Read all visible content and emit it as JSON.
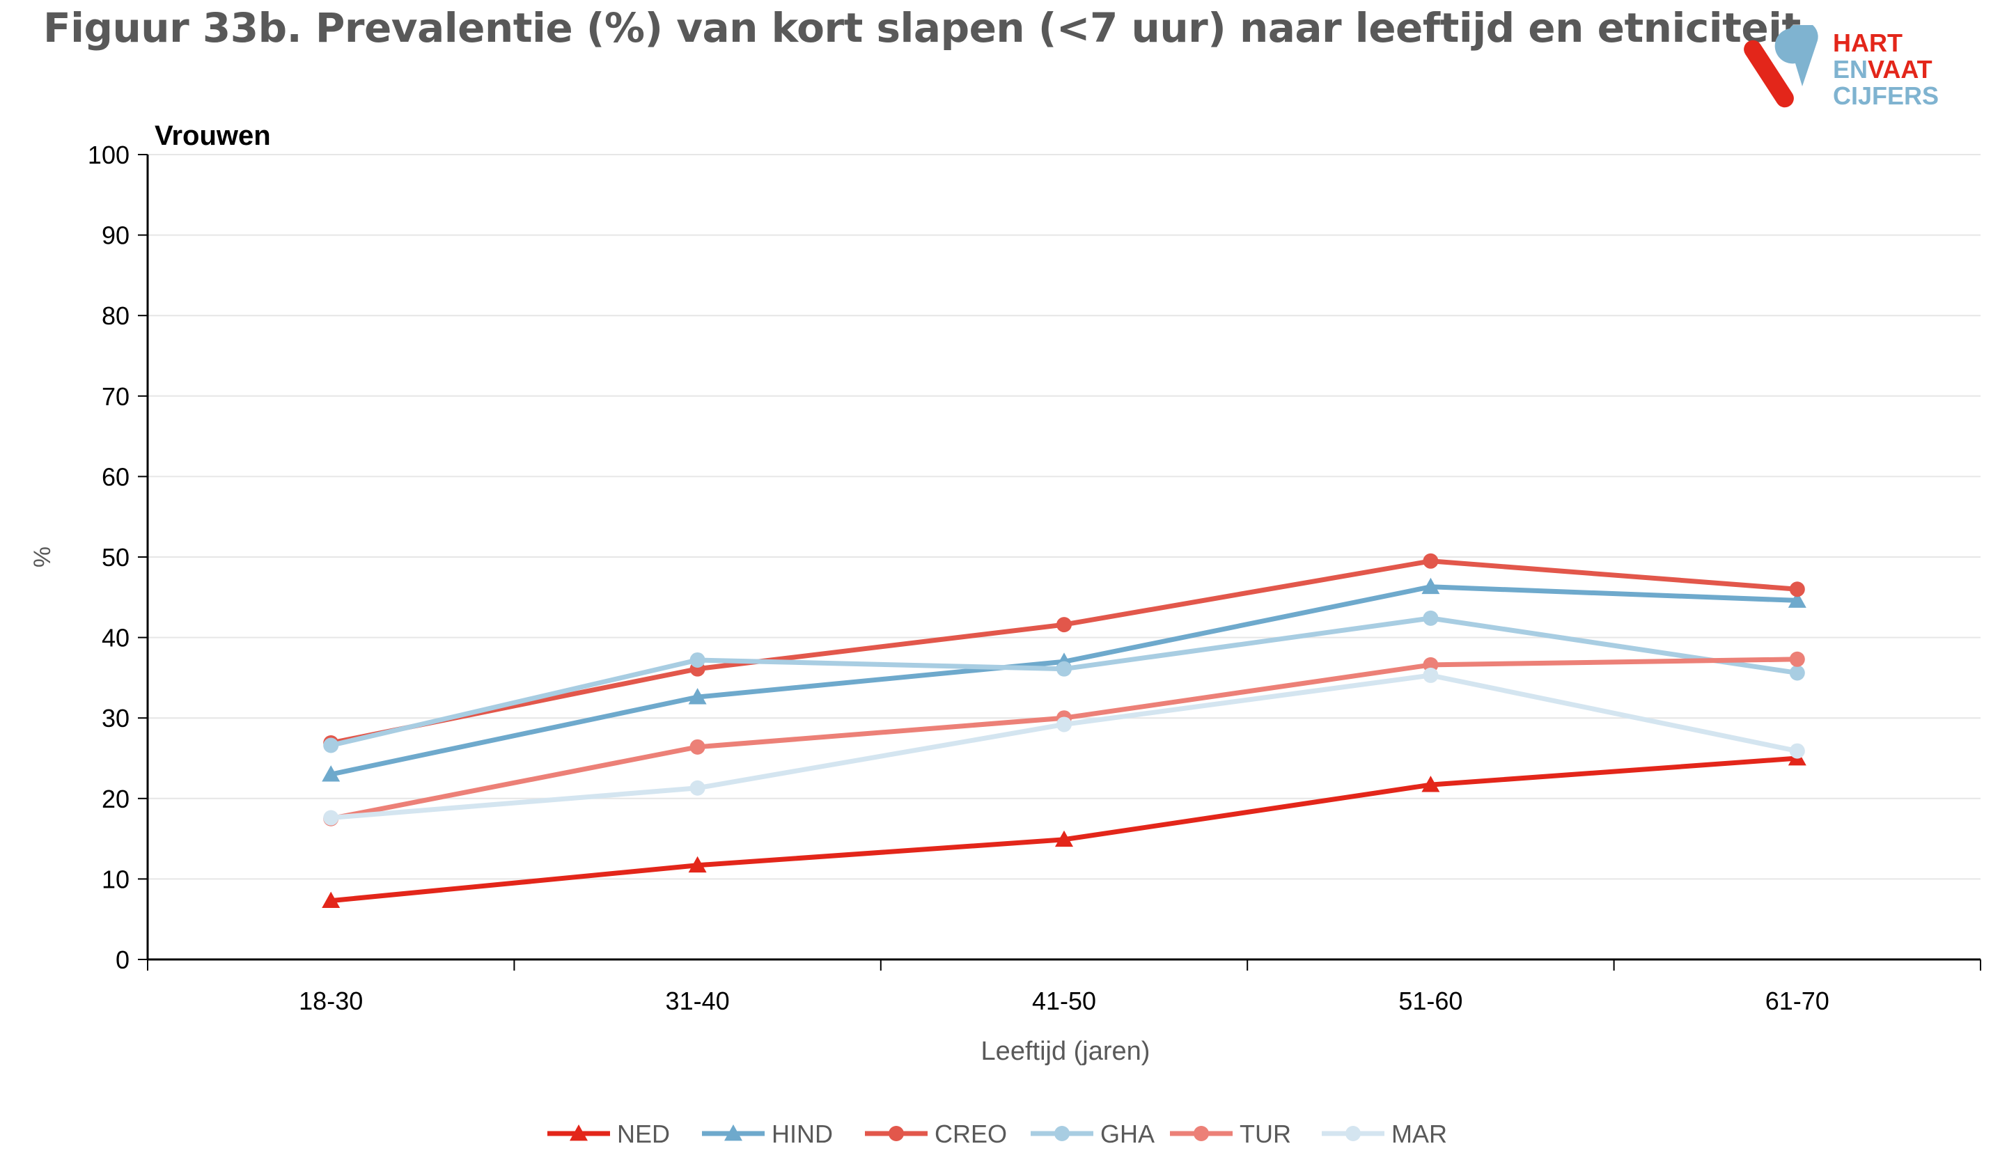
{
  "title": "Figuur 33b. Prevalentie (%) van kort slapen (<7 uur) naar leeftijd en etniciteit",
  "logo": {
    "line1": "HART",
    "line2a": "EN",
    "line2b": "VAAT",
    "line3": "CIJFERS",
    "colors": {
      "red": "#e3261a",
      "blue": "#7fb3d0"
    }
  },
  "chart_data": {
    "type": "line",
    "panel_title": "Vrouwen",
    "xlabel": "Leeftijd (jaren)",
    "ylabel": "%",
    "ylim": [
      0,
      100
    ],
    "yticks": [
      0,
      10,
      20,
      30,
      40,
      50,
      60,
      70,
      80,
      90,
      100
    ],
    "grid": true,
    "legend_position": "bottom",
    "categories": [
      "18-30",
      "31-40",
      "41-50",
      "51-60",
      "61-70"
    ],
    "series": [
      {
        "name": "NED",
        "values": [
          7.3,
          11.7,
          14.9,
          21.7,
          25.0
        ],
        "color": "#e3261a",
        "marker": "triangle"
      },
      {
        "name": "HIND",
        "values": [
          23.0,
          32.6,
          37.0,
          46.3,
          44.6
        ],
        "color": "#6ea9cc",
        "marker": "triangle"
      },
      {
        "name": "CREO",
        "values": [
          26.9,
          36.1,
          41.6,
          49.5,
          46.0
        ],
        "color": "#e2574b",
        "marker": "circle"
      },
      {
        "name": "GHA",
        "values": [
          26.6,
          37.2,
          36.1,
          42.4,
          35.6
        ],
        "color": "#a8cde2",
        "marker": "circle"
      },
      {
        "name": "TUR",
        "values": [
          17.5,
          26.4,
          30.0,
          36.6,
          37.3
        ],
        "color": "#ec8077",
        "marker": "circle"
      },
      {
        "name": "MAR",
        "values": [
          17.6,
          21.3,
          29.2,
          35.3,
          25.9
        ],
        "color": "#d4e5f0",
        "marker": "circle"
      }
    ]
  }
}
